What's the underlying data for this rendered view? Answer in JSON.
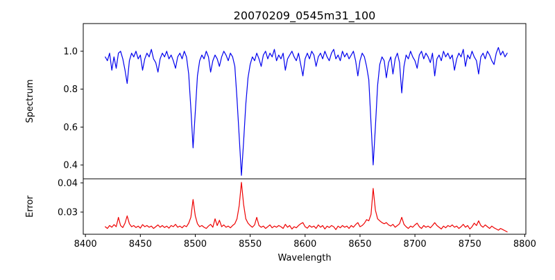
{
  "figure": {
    "background": "#ffffff",
    "title": "20070209_0545m31_100",
    "xlabel": "Wavelength"
  },
  "chart_data": [
    {
      "type": "line",
      "panel": "top",
      "title": "20070209_0545m31_100",
      "ylabel": "Spectrum",
      "color": "#0000ee",
      "grid": false,
      "legend": null,
      "xlim": [
        8398,
        8801
      ],
      "ylim": [
        0.327,
        1.146
      ],
      "yticks": [
        0.4,
        0.6,
        0.8,
        1.0
      ],
      "ytick_labels": [
        "0.4",
        "0.6",
        "0.8",
        "1.0"
      ],
      "x_start": 8418,
      "x_step": 2,
      "values": [
        0.97,
        0.95,
        0.99,
        0.9,
        0.97,
        0.91,
        0.99,
        1.0,
        0.96,
        0.9,
        0.83,
        0.95,
        0.99,
        0.97,
        1.0,
        0.96,
        0.98,
        0.9,
        0.96,
        0.99,
        0.97,
        1.01,
        0.96,
        0.94,
        0.89,
        0.96,
        0.99,
        0.97,
        1.0,
        0.96,
        0.98,
        0.95,
        0.91,
        0.97,
        0.99,
        0.96,
        1.0,
        0.97,
        0.88,
        0.7,
        0.49,
        0.68,
        0.87,
        0.95,
        0.98,
        0.96,
        1.0,
        0.97,
        0.89,
        0.95,
        0.98,
        0.96,
        0.92,
        0.97,
        1.0,
        0.98,
        0.95,
        0.99,
        0.97,
        0.92,
        0.75,
        0.55,
        0.345,
        0.52,
        0.72,
        0.86,
        0.93,
        0.97,
        0.95,
        0.99,
        0.96,
        0.92,
        0.98,
        1.0,
        0.96,
        0.99,
        0.97,
        1.01,
        0.95,
        0.98,
        0.96,
        0.99,
        0.9,
        0.96,
        0.98,
        1.0,
        0.97,
        0.95,
        0.99,
        0.93,
        0.87,
        0.96,
        0.99,
        0.96,
        1.0,
        0.98,
        0.92,
        0.97,
        0.99,
        0.96,
        1.0,
        0.97,
        0.95,
        0.99,
        1.01,
        0.96,
        0.98,
        0.95,
        1.0,
        0.97,
        0.99,
        0.96,
        0.98,
        1.0,
        0.95,
        0.87,
        0.95,
        0.99,
        0.97,
        0.92,
        0.85,
        0.62,
        0.4,
        0.6,
        0.82,
        0.93,
        0.97,
        0.95,
        0.86,
        0.94,
        0.97,
        0.88,
        0.96,
        0.99,
        0.94,
        0.78,
        0.92,
        0.98,
        0.96,
        1.0,
        0.97,
        0.95,
        0.91,
        0.98,
        1.0,
        0.96,
        0.99,
        0.97,
        0.94,
        0.99,
        0.87,
        0.96,
        0.98,
        0.95,
        1.0,
        0.97,
        0.99,
        0.96,
        0.98,
        0.9,
        0.96,
        0.99,
        0.97,
        1.01,
        0.92,
        0.98,
        0.96,
        1.0,
        0.97,
        0.95,
        0.88,
        0.97,
        0.99,
        0.96,
        1.0,
        0.98,
        0.95,
        0.93,
        0.99,
        1.02,
        0.98,
        1.0,
        0.97,
        0.99
      ]
    },
    {
      "type": "line",
      "panel": "bottom",
      "ylabel": "Error",
      "xlabel": "Wavelength",
      "color": "#ee0000",
      "grid": false,
      "legend": null,
      "xlim": [
        8398,
        8801
      ],
      "ylim": [
        0.0224,
        0.0414
      ],
      "yticks": [
        0.03,
        0.04
      ],
      "ytick_labels": [
        "0.03",
        "0.04"
      ],
      "xticks": [
        8400,
        8450,
        8500,
        8550,
        8600,
        8650,
        8700,
        8750,
        8800
      ],
      "xtick_labels": [
        "8400",
        "8450",
        "8500",
        "8550",
        "8600",
        "8650",
        "8700",
        "8750",
        "8800"
      ],
      "x_start": 8418,
      "x_step": 2,
      "values": [
        0.025,
        0.0244,
        0.0254,
        0.0248,
        0.0257,
        0.025,
        0.0282,
        0.0254,
        0.0247,
        0.0262,
        0.0287,
        0.026,
        0.025,
        0.0254,
        0.0247,
        0.0252,
        0.0245,
        0.0257,
        0.025,
        0.0254,
        0.0248,
        0.0252,
        0.0244,
        0.025,
        0.0256,
        0.0248,
        0.0254,
        0.0247,
        0.0252,
        0.0245,
        0.0254,
        0.025,
        0.0258,
        0.0248,
        0.0252,
        0.0246,
        0.0254,
        0.025,
        0.0262,
        0.0282,
        0.0343,
        0.0287,
        0.026,
        0.025,
        0.0254,
        0.0248,
        0.0244,
        0.0252,
        0.0258,
        0.0248,
        0.0277,
        0.0254,
        0.0272,
        0.025,
        0.0256,
        0.0248,
        0.0252,
        0.0246,
        0.0254,
        0.026,
        0.0277,
        0.0322,
        0.0402,
        0.0327,
        0.0277,
        0.0262,
        0.0254,
        0.0248,
        0.0256,
        0.0282,
        0.0254,
        0.0248,
        0.0252,
        0.0244,
        0.025,
        0.0256,
        0.0246,
        0.0252,
        0.0248,
        0.0254,
        0.025,
        0.0244,
        0.0258,
        0.0248,
        0.0254,
        0.0242,
        0.025,
        0.0246,
        0.0254,
        0.026,
        0.0264,
        0.025,
        0.0245,
        0.0254,
        0.0248,
        0.0252,
        0.0244,
        0.0256,
        0.0248,
        0.0254,
        0.0242,
        0.0252,
        0.0247,
        0.0254,
        0.025,
        0.024,
        0.0252,
        0.0246,
        0.0254,
        0.0248,
        0.0252,
        0.0244,
        0.0254,
        0.0248,
        0.0257,
        0.0264,
        0.025,
        0.0254,
        0.0262,
        0.0274,
        0.027,
        0.0292,
        0.0381,
        0.0307,
        0.0277,
        0.027,
        0.0264,
        0.026,
        0.0264,
        0.0256,
        0.0252,
        0.0258,
        0.0248,
        0.0254,
        0.026,
        0.0282,
        0.0258,
        0.025,
        0.0244,
        0.0252,
        0.0248,
        0.0256,
        0.0262,
        0.025,
        0.0244,
        0.0254,
        0.0248,
        0.0252,
        0.0246,
        0.0254,
        0.0264,
        0.0254,
        0.0248,
        0.0242,
        0.0252,
        0.0246,
        0.0254,
        0.025,
        0.0256,
        0.0248,
        0.0252,
        0.0244,
        0.025,
        0.0258,
        0.0248,
        0.0254,
        0.0242,
        0.025,
        0.0262,
        0.0254,
        0.027,
        0.0254,
        0.0248,
        0.0256,
        0.025,
        0.0244,
        0.0252,
        0.0246,
        0.0242,
        0.0238,
        0.0244,
        0.024,
        0.0236,
        0.0232
      ]
    }
  ]
}
